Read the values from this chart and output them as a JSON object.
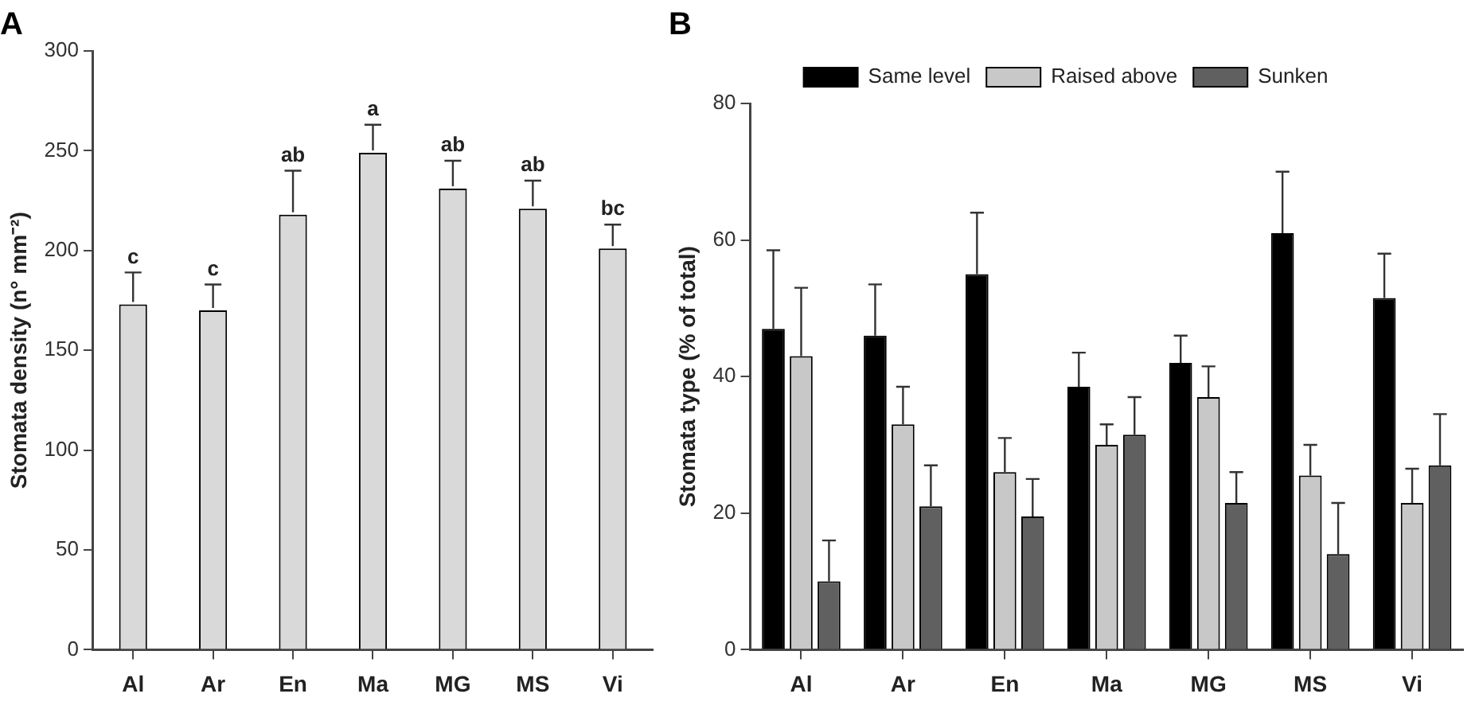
{
  "chart_data": [
    {
      "type": "bar",
      "title": "A",
      "ylabel": "Stomata density (n° mm⁻²)",
      "categories": [
        "Al",
        "Ar",
        "En",
        "Ma",
        "MG",
        "MS",
        "Vi"
      ],
      "values": [
        173,
        170,
        218,
        249,
        231,
        221,
        201
      ],
      "color": "#d9d9d9",
      "errors": [
        [
          173,
          189
        ],
        [
          170,
          183
        ],
        [
          218,
          240
        ],
        [
          249,
          263
        ],
        [
          231,
          245
        ],
        [
          221,
          235
        ],
        [
          201,
          213
        ]
      ],
      "ylim": [
        0,
        300
      ],
      "yticks": [
        0,
        50,
        100,
        150,
        200,
        250,
        300
      ],
      "annotations": [
        {
          "text": "c",
          "x": "Al",
          "y": 189
        },
        {
          "text": "c",
          "x": "Ar",
          "y": 183
        },
        {
          "text": "ab",
          "x": "En",
          "y": 240
        },
        {
          "text": "a",
          "x": "Ma",
          "y": 263
        },
        {
          "text": "ab",
          "x": "MG",
          "y": 245
        },
        {
          "text": "ab",
          "x": "MS",
          "y": 235
        },
        {
          "text": "bc",
          "x": "Vi",
          "y": 213
        }
      ]
    },
    {
      "type": "bar",
      "title": "B",
      "ylabel": "Stomata type (% of total)",
      "categories": [
        "Al",
        "Ar",
        "En",
        "Ma",
        "MG",
        "MS",
        "Vi"
      ],
      "series": [
        {
          "name": "Same level",
          "color": "#000000",
          "values": [
            47,
            46,
            55,
            38.5,
            42,
            61,
            51.5
          ],
          "errors": [
            [
              47,
              58.5
            ],
            [
              46,
              53.5
            ],
            [
              55,
              64
            ],
            [
              38.5,
              43.5
            ],
            [
              42,
              46
            ],
            [
              61,
              70
            ],
            [
              51.5,
              58
            ]
          ]
        },
        {
          "name": "Raised above",
          "color": "#c8c8c8",
          "values": [
            43,
            33,
            26,
            30,
            37,
            25.5,
            21.5
          ],
          "errors": [
            [
              43,
              53
            ],
            [
              33,
              38.5
            ],
            [
              26,
              31
            ],
            [
              30,
              33
            ],
            [
              37,
              41.5
            ],
            [
              25.5,
              30
            ],
            [
              21.5,
              26.5
            ]
          ]
        },
        {
          "name": "Sunken",
          "color": "#606060",
          "values": [
            10,
            21,
            19.5,
            31.5,
            21.5,
            14,
            27
          ],
          "errors": [
            [
              10,
              16
            ],
            [
              21,
              27
            ],
            [
              19.5,
              25
            ],
            [
              31.5,
              37
            ],
            [
              21.5,
              26
            ],
            [
              14,
              21.5
            ],
            [
              27,
              34.5
            ]
          ]
        }
      ],
      "ylim": [
        0,
        80
      ],
      "yticks": [
        0,
        20,
        40,
        60,
        80
      ],
      "legend": "top"
    }
  ]
}
